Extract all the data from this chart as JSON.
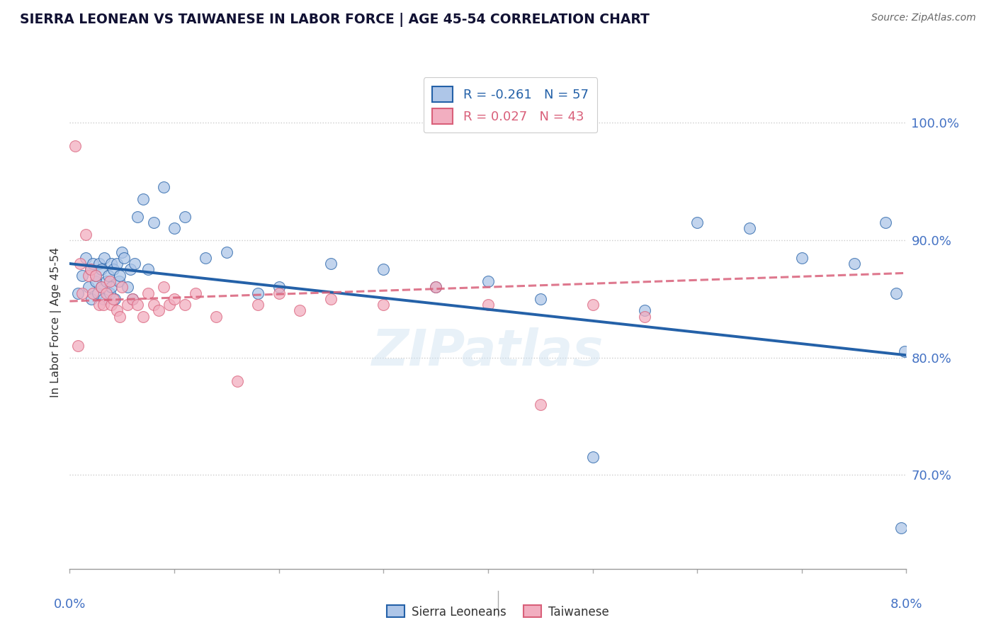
{
  "title": "SIERRA LEONEAN VS TAIWANESE IN LABOR FORCE | AGE 45-54 CORRELATION CHART",
  "source": "Source: ZipAtlas.com",
  "ylabel": "In Labor Force | Age 45-54",
  "ytick_values": [
    70.0,
    80.0,
    90.0,
    100.0
  ],
  "xlim": [
    0.0,
    8.0
  ],
  "ylim": [
    62.0,
    104.0
  ],
  "legend_blue_r": "-0.261",
  "legend_blue_n": "57",
  "legend_pink_r": "0.027",
  "legend_pink_n": "43",
  "legend_label_blue": "Sierra Leoneans",
  "legend_label_pink": "Taiwanese",
  "blue_fill": "#aec6e8",
  "pink_fill": "#f2aec0",
  "line_blue": "#2461a8",
  "line_pink": "#d9607a",
  "title_color": "#111133",
  "label_color": "#4472c4",
  "grid_color": "#cccccc",
  "blue_trendline_x0": 0.0,
  "blue_trendline_x1": 8.0,
  "blue_trendline_y0": 88.0,
  "blue_trendline_y1": 80.2,
  "pink_trendline_x0": 0.0,
  "pink_trendline_x1": 8.0,
  "pink_trendline_y0": 84.8,
  "pink_trendline_y1": 87.2,
  "sierra_x": [
    0.08,
    0.12,
    0.15,
    0.18,
    0.2,
    0.21,
    0.22,
    0.25,
    0.25,
    0.27,
    0.28,
    0.3,
    0.3,
    0.32,
    0.33,
    0.35,
    0.37,
    0.38,
    0.4,
    0.4,
    0.42,
    0.43,
    0.45,
    0.47,
    0.48,
    0.5,
    0.52,
    0.55,
    0.58,
    0.6,
    0.62,
    0.65,
    0.7,
    0.75,
    0.8,
    0.9,
    1.0,
    1.1,
    1.3,
    1.5,
    1.8,
    2.0,
    2.5,
    3.0,
    3.5,
    4.0,
    4.5,
    5.0,
    5.5,
    6.0,
    6.5,
    7.0,
    7.5,
    7.8,
    7.9,
    7.95,
    7.98
  ],
  "sierra_y": [
    85.5,
    87.0,
    88.5,
    86.0,
    87.5,
    85.0,
    88.0,
    86.5,
    87.0,
    85.5,
    88.0,
    86.0,
    87.5,
    85.0,
    88.5,
    86.5,
    87.0,
    85.5,
    88.0,
    86.0,
    87.5,
    85.0,
    88.0,
    86.5,
    87.0,
    89.0,
    88.5,
    86.0,
    87.5,
    85.0,
    88.0,
    92.0,
    93.5,
    87.5,
    91.5,
    94.5,
    91.0,
    92.0,
    88.5,
    89.0,
    85.5,
    86.0,
    88.0,
    87.5,
    86.0,
    86.5,
    85.0,
    71.5,
    84.0,
    91.5,
    91.0,
    88.5,
    88.0,
    91.5,
    85.5,
    65.5,
    80.5
  ],
  "taiwan_x": [
    0.05,
    0.08,
    0.1,
    0.12,
    0.15,
    0.18,
    0.2,
    0.22,
    0.25,
    0.28,
    0.3,
    0.32,
    0.35,
    0.38,
    0.4,
    0.42,
    0.45,
    0.48,
    0.5,
    0.55,
    0.6,
    0.65,
    0.7,
    0.75,
    0.8,
    0.85,
    0.9,
    0.95,
    1.0,
    1.1,
    1.2,
    1.4,
    1.6,
    1.8,
    2.0,
    2.2,
    2.5,
    3.0,
    3.5,
    4.0,
    4.5,
    5.0,
    5.5
  ],
  "taiwan_y": [
    98.0,
    81.0,
    88.0,
    85.5,
    90.5,
    87.0,
    87.5,
    85.5,
    87.0,
    84.5,
    86.0,
    84.5,
    85.5,
    86.5,
    84.5,
    85.0,
    84.0,
    83.5,
    86.0,
    84.5,
    85.0,
    84.5,
    83.5,
    85.5,
    84.5,
    84.0,
    86.0,
    84.5,
    85.0,
    84.5,
    85.5,
    83.5,
    78.0,
    84.5,
    85.5,
    84.0,
    85.0,
    84.5,
    86.0,
    84.5,
    76.0,
    84.5,
    83.5
  ]
}
